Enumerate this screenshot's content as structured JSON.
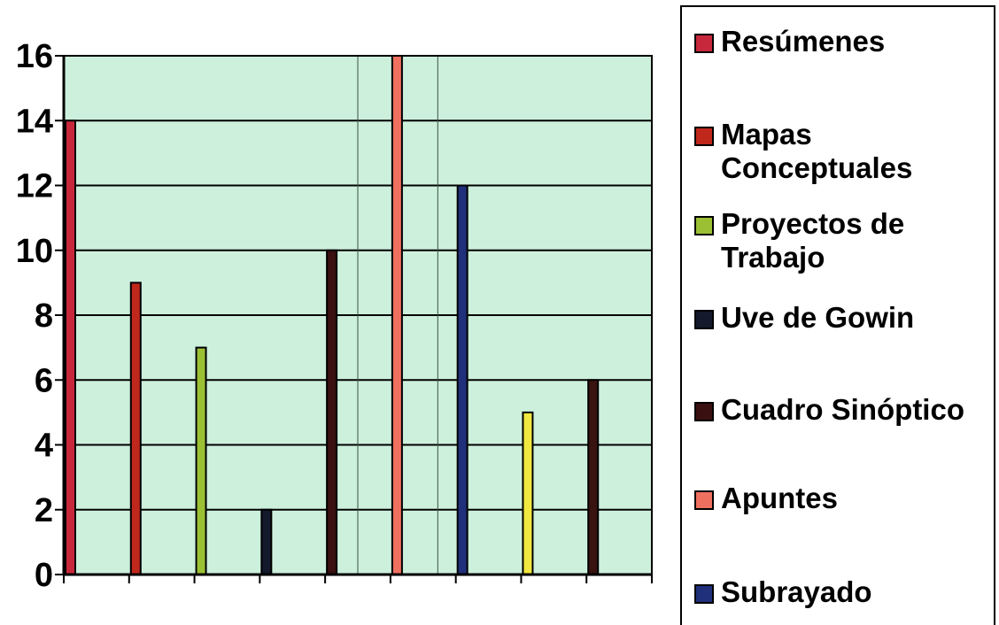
{
  "chart_data": {
    "type": "bar",
    "title": "",
    "xlabel": "",
    "ylabel": "",
    "ylim": [
      0,
      16
    ],
    "yticks": [
      "0",
      "2",
      "4",
      "6",
      "8",
      "10",
      "12",
      "14",
      "16"
    ],
    "grid": true,
    "legend_position": "right",
    "plot_background": "#ccf0dc",
    "series": [
      {
        "name": "Resúmenes",
        "value": 14,
        "color": "#c8283c"
      },
      {
        "name": "Mapas Conceptuales",
        "value": 9,
        "color": "#c0281c"
      },
      {
        "name": "Proyectos de Trabajo",
        "value": 7,
        "color": "#9cc034"
      },
      {
        "name": "Uve de Gowin",
        "value": 2,
        "color": "#141a2c"
      },
      {
        "name": "Cuadro Sinóptico",
        "value": 10,
        "color": "#3a1010"
      },
      {
        "name": "Apuntes",
        "value": 16,
        "color": "#f07060"
      },
      {
        "name": "Subrayado",
        "value": 12,
        "color": "#20307a"
      },
      {
        "name": "",
        "value": 5,
        "color": "#f0e840"
      },
      {
        "name": "",
        "value": 6,
        "color": "#3a1410"
      }
    ]
  }
}
